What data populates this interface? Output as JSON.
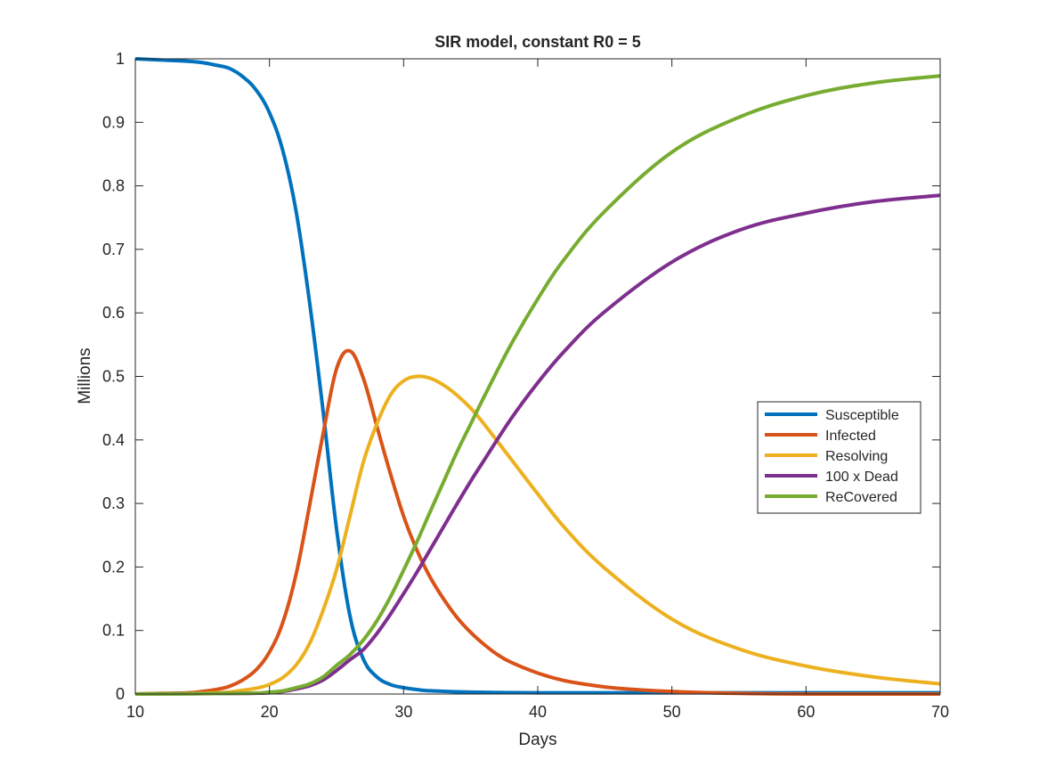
{
  "chart_data": {
    "type": "line",
    "title": "SIR model, constant R0 = 5",
    "xlabel": "Days",
    "ylabel": "Millions",
    "xlim": [
      10,
      70
    ],
    "ylim": [
      0,
      1
    ],
    "xticks": [
      "10",
      "20",
      "30",
      "40",
      "50",
      "60",
      "70"
    ],
    "yticks": [
      "0",
      "0.1",
      "0.2",
      "0.3",
      "0.4",
      "0.5",
      "0.6",
      "0.7",
      "0.8",
      "0.9",
      "1"
    ],
    "grid": false,
    "legend_position": "right",
    "series": [
      {
        "name": "Susceptible",
        "color": "#0072BD",
        "x": [
          10,
          12,
          14,
          15,
          16,
          17,
          18,
          19,
          20,
          21,
          22,
          23,
          24,
          25,
          26,
          27,
          28,
          29,
          30,
          31,
          32,
          35,
          40,
          50,
          60,
          70
        ],
        "y": [
          1.0,
          0.998,
          0.996,
          0.994,
          0.99,
          0.985,
          0.972,
          0.951,
          0.915,
          0.855,
          0.758,
          0.615,
          0.445,
          0.26,
          0.123,
          0.055,
          0.027,
          0.015,
          0.01,
          0.007,
          0.005,
          0.003,
          0.002,
          0.002,
          0.002,
          0.002
        ]
      },
      {
        "name": "Infected",
        "color": "#D95319",
        "x": [
          10,
          12,
          14,
          15,
          16,
          17,
          18,
          19,
          20,
          21,
          22,
          23,
          24,
          25,
          26,
          27,
          28,
          29,
          30,
          31,
          32,
          33,
          34,
          35,
          36,
          37,
          38,
          40,
          42,
          44,
          46,
          50,
          55,
          60,
          70
        ],
        "y": [
          0.0,
          0.001,
          0.002,
          0.004,
          0.007,
          0.012,
          0.022,
          0.038,
          0.066,
          0.113,
          0.19,
          0.298,
          0.41,
          0.512,
          0.54,
          0.497,
          0.422,
          0.348,
          0.28,
          0.226,
          0.183,
          0.149,
          0.12,
          0.097,
          0.078,
          0.062,
          0.05,
          0.033,
          0.021,
          0.014,
          0.009,
          0.004,
          0.001,
          0.0,
          0.0
        ]
      },
      {
        "name": "Resolving",
        "color": "#EDB120",
        "x": [
          10,
          14,
          16,
          17,
          18,
          19,
          20,
          21,
          22,
          23,
          24,
          25,
          26,
          27,
          28,
          29,
          30,
          31,
          32,
          33,
          34,
          35,
          36,
          38,
          40,
          42,
          45,
          50,
          55,
          60,
          65,
          70
        ],
        "y": [
          0.0,
          0.001,
          0.002,
          0.003,
          0.006,
          0.009,
          0.015,
          0.026,
          0.046,
          0.08,
          0.132,
          0.196,
          0.28,
          0.365,
          0.425,
          0.47,
          0.493,
          0.5,
          0.497,
          0.486,
          0.47,
          0.45,
          0.425,
          0.37,
          0.315,
          0.262,
          0.198,
          0.118,
          0.071,
          0.044,
          0.027,
          0.016
        ]
      },
      {
        "name": "100 x Dead",
        "color": "#7E2F8E",
        "x": [
          10,
          18,
          20,
          21,
          22,
          23,
          24,
          25,
          26,
          27,
          28,
          29,
          30,
          31,
          32,
          33,
          34,
          35,
          36,
          38,
          40,
          42,
          45,
          50,
          55,
          60,
          65,
          70
        ],
        "y": [
          0.0,
          0.001,
          0.002,
          0.004,
          0.008,
          0.013,
          0.022,
          0.037,
          0.054,
          0.07,
          0.095,
          0.125,
          0.158,
          0.192,
          0.228,
          0.264,
          0.3,
          0.335,
          0.368,
          0.433,
          0.49,
          0.54,
          0.602,
          0.68,
          0.73,
          0.757,
          0.775,
          0.785
        ]
      },
      {
        "name": "ReCovered",
        "color": "#77AC30",
        "x": [
          10,
          18,
          20,
          21,
          22,
          23,
          24,
          25,
          26,
          27,
          28,
          29,
          30,
          31,
          32,
          33,
          34,
          35,
          36,
          38,
          40,
          42,
          45,
          50,
          55,
          60,
          65,
          70
        ],
        "y": [
          0.0,
          0.001,
          0.003,
          0.005,
          0.01,
          0.016,
          0.027,
          0.045,
          0.062,
          0.085,
          0.115,
          0.152,
          0.195,
          0.24,
          0.288,
          0.335,
          0.382,
          0.425,
          0.468,
          0.55,
          0.622,
          0.685,
          0.76,
          0.853,
          0.908,
          0.942,
          0.962,
          0.973
        ]
      }
    ]
  }
}
